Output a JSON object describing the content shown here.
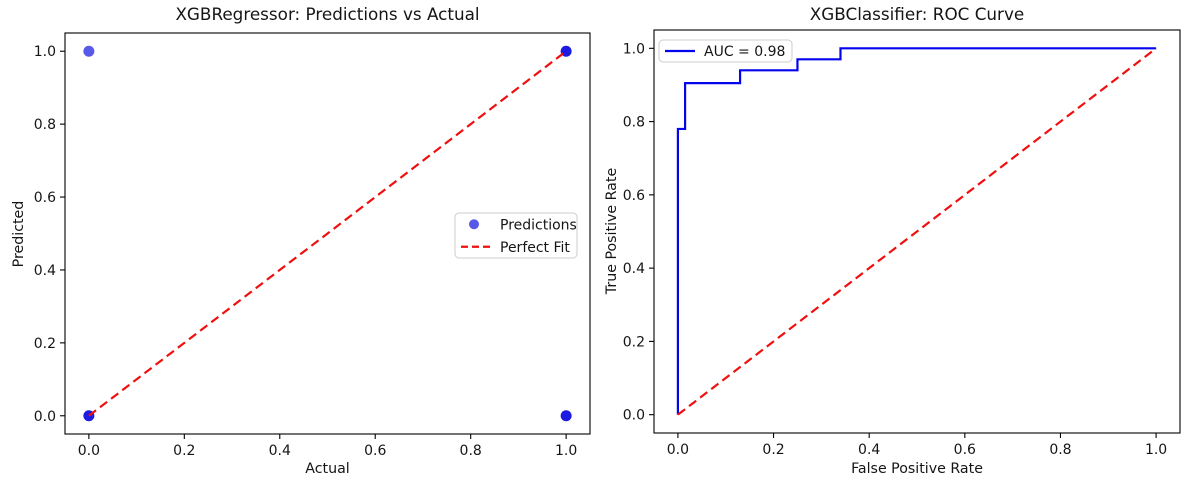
{
  "figure": {
    "background": "#ffffff"
  },
  "chart_data": [
    {
      "type": "scatter",
      "title": "XGBRegressor: Predictions vs Actual",
      "xlabel": "Actual",
      "ylabel": "Predicted",
      "xlim": [
        -0.05,
        1.05
      ],
      "ylim": [
        -0.05,
        1.05
      ],
      "xticks": [
        0.0,
        0.2,
        0.4,
        0.6,
        0.8,
        1.0
      ],
      "yticks": [
        0.0,
        0.2,
        0.4,
        0.6,
        0.8,
        1.0
      ],
      "grid": false,
      "legend_position": "center-right",
      "series": [
        {
          "name": "Predictions",
          "kind": "scatter",
          "color": "#1212e0",
          "marker_alpha": 0.7,
          "stacked_alpha": 0.96,
          "points": [
            {
              "x": 0,
              "y": 0,
              "stacked": true
            },
            {
              "x": 1,
              "y": 1,
              "stacked": true
            },
            {
              "x": 1,
              "y": 0,
              "stacked": true
            },
            {
              "x": 0,
              "y": 1,
              "stacked": false
            }
          ]
        },
        {
          "name": "Perfect Fit",
          "kind": "line",
          "style": "dashed",
          "color": "#f00f0f",
          "points": [
            {
              "x": 0,
              "y": 0
            },
            {
              "x": 1,
              "y": 1
            }
          ]
        }
      ]
    },
    {
      "type": "line",
      "title": "XGBClassifier: ROC Curve",
      "xlabel": "False Positive Rate",
      "ylabel": "True Positive Rate",
      "xlim": [
        -0.05,
        1.05
      ],
      "ylim": [
        -0.05,
        1.05
      ],
      "xticks": [
        0.0,
        0.2,
        0.4,
        0.6,
        0.8,
        1.0
      ],
      "yticks": [
        0.0,
        0.2,
        0.4,
        0.6,
        0.8,
        1.0
      ],
      "grid": false,
      "legend_position": "top-left",
      "auc": 0.98,
      "series": [
        {
          "name": "AUC = 0.98",
          "kind": "line",
          "style": "solid",
          "color": "#0404ed",
          "points": [
            {
              "x": 0.0,
              "y": 0.0
            },
            {
              "x": 0.0,
              "y": 0.78
            },
            {
              "x": 0.015,
              "y": 0.78
            },
            {
              "x": 0.015,
              "y": 0.905
            },
            {
              "x": 0.13,
              "y": 0.905
            },
            {
              "x": 0.13,
              "y": 0.94
            },
            {
              "x": 0.25,
              "y": 0.94
            },
            {
              "x": 0.25,
              "y": 0.97
            },
            {
              "x": 0.34,
              "y": 0.97
            },
            {
              "x": 0.34,
              "y": 1.0
            },
            {
              "x": 1.0,
              "y": 1.0
            }
          ]
        },
        {
          "name": "",
          "kind": "line",
          "style": "dashed",
          "color": "#f00f0f",
          "points": [
            {
              "x": 0,
              "y": 0
            },
            {
              "x": 1,
              "y": 1
            }
          ]
        }
      ]
    }
  ]
}
